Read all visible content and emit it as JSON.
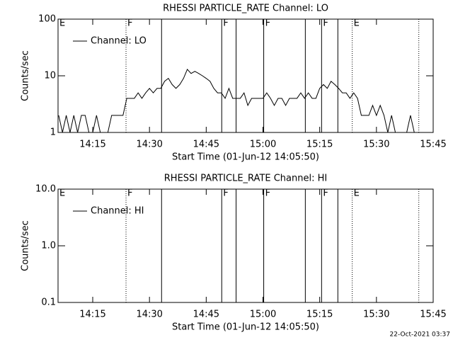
{
  "footer": "22-Oct-2021 03:37",
  "chart_data": [
    {
      "type": "line",
      "title": "RHESSI PARTICLE_RATE Channel: LO",
      "xlabel": "Start Time (01-Jun-12 14:05:50)",
      "ylabel": "Counts/sec",
      "log_y": true,
      "ylim": [
        1,
        100
      ],
      "yticks": [
        1,
        10,
        100
      ],
      "xlim": [
        845.83,
        945
      ],
      "xticks": [
        {
          "value": 855,
          "label": "14:15"
        },
        {
          "value": 870,
          "label": "14:30"
        },
        {
          "value": 885,
          "label": "14:45"
        },
        {
          "value": 900,
          "label": "15:00"
        },
        {
          "value": 915,
          "label": "15:15"
        },
        {
          "value": 930,
          "label": "15:30"
        },
        {
          "value": 945,
          "label": "15:45"
        }
      ],
      "legend": "upper left",
      "series": [
        {
          "name": "Channel: LO",
          "color": "#000000",
          "x": [
            846,
            847,
            848,
            849,
            850,
            851,
            852,
            853,
            854,
            855,
            856,
            857,
            858,
            859,
            860,
            861,
            862,
            863,
            864,
            865,
            866,
            867,
            868,
            869,
            870,
            871,
            872,
            873,
            874,
            875,
            876,
            877,
            878,
            879,
            880,
            881,
            882,
            883,
            884,
            885,
            886,
            887,
            888,
            889,
            890,
            891,
            892,
            893,
            894,
            895,
            896,
            897,
            898,
            899,
            900,
            901,
            902,
            903,
            904,
            905,
            906,
            907,
            908,
            909,
            910,
            911,
            912,
            913,
            914,
            915,
            916,
            917,
            918,
            919,
            920,
            921,
            922,
            923,
            924,
            925,
            926,
            927,
            928,
            929,
            930,
            931,
            932,
            933,
            934,
            935,
            936,
            937,
            938,
            939,
            940
          ],
          "values": [
            2,
            1,
            2,
            1,
            2,
            1,
            2,
            2,
            1,
            1,
            2,
            1,
            1,
            1,
            2,
            2,
            2,
            2,
            4,
            4,
            4,
            5,
            4,
            5,
            6,
            5,
            6,
            6,
            8,
            9,
            7,
            6,
            7,
            9,
            13,
            11,
            12,
            11,
            10,
            9,
            8,
            6,
            5,
            5,
            4,
            6,
            4,
            4,
            4,
            5,
            3,
            4,
            4,
            4,
            4,
            5,
            4,
            3,
            4,
            4,
            3,
            4,
            4,
            4,
            5,
            4,
            5,
            4,
            4,
            6,
            7,
            6,
            8,
            7,
            6,
            5,
            5,
            4,
            5,
            4,
            2,
            2,
            2,
            3,
            2,
            3,
            2,
            1,
            2,
            1,
            1,
            1,
            1,
            2,
            1
          ]
        }
      ],
      "markers": [
        {
          "x": 863.8,
          "style": "dotted"
        },
        {
          "x": 873.2,
          "style": "solid"
        },
        {
          "x": 889.1,
          "style": "solid"
        },
        {
          "x": 892.9,
          "style": "solid"
        },
        {
          "x": 900.2,
          "style": "solid"
        },
        {
          "x": 911.2,
          "style": "solid"
        },
        {
          "x": 915.5,
          "style": "solid"
        },
        {
          "x": 919.8,
          "style": "solid"
        },
        {
          "x": 923.6,
          "style": "dotted"
        },
        {
          "x": 941.2,
          "style": "dotted"
        }
      ],
      "annotations": [
        {
          "x": 845.83,
          "label": "E"
        },
        {
          "x": 863.8,
          "label": "F"
        },
        {
          "x": 889.1,
          "label": "F"
        },
        {
          "x": 900.2,
          "label": "F"
        },
        {
          "x": 915.5,
          "label": "F"
        },
        {
          "x": 923.6,
          "label": "E"
        }
      ]
    },
    {
      "type": "line",
      "title": "RHESSI PARTICLE_RATE Channel: HI",
      "xlabel": "Start Time (01-Jun-12 14:05:50)",
      "ylabel": "Counts/sec",
      "log_y": true,
      "ylim": [
        0.1,
        10
      ],
      "yticks": [
        0.1,
        {
          "value": 1,
          "label": "1.0"
        },
        {
          "value": 10,
          "label": "10.0"
        }
      ],
      "xlim": [
        845.83,
        945
      ],
      "xticks": [
        {
          "value": 855,
          "label": "14:15"
        },
        {
          "value": 870,
          "label": "14:30"
        },
        {
          "value": 885,
          "label": "14:45"
        },
        {
          "value": 900,
          "label": "15:00"
        },
        {
          "value": 915,
          "label": "15:15"
        },
        {
          "value": 930,
          "label": "15:30"
        },
        {
          "value": 945,
          "label": "15:45"
        }
      ],
      "legend": "upper left",
      "series": [
        {
          "name": "Channel: HI",
          "color": "#000000",
          "x": [],
          "values": []
        }
      ],
      "markers": [
        {
          "x": 863.8,
          "style": "dotted"
        },
        {
          "x": 873.2,
          "style": "solid"
        },
        {
          "x": 889.1,
          "style": "solid"
        },
        {
          "x": 892.9,
          "style": "solid"
        },
        {
          "x": 900.2,
          "style": "solid"
        },
        {
          "x": 911.2,
          "style": "solid"
        },
        {
          "x": 915.5,
          "style": "solid"
        },
        {
          "x": 919.8,
          "style": "solid"
        },
        {
          "x": 923.6,
          "style": "dotted"
        },
        {
          "x": 941.2,
          "style": "dotted"
        }
      ],
      "annotations": [
        {
          "x": 845.83,
          "label": "E"
        },
        {
          "x": 863.8,
          "label": "F"
        },
        {
          "x": 889.1,
          "label": "F"
        },
        {
          "x": 900.2,
          "label": "F"
        },
        {
          "x": 915.5,
          "label": "F"
        },
        {
          "x": 923.6,
          "label": "E"
        }
      ]
    }
  ]
}
